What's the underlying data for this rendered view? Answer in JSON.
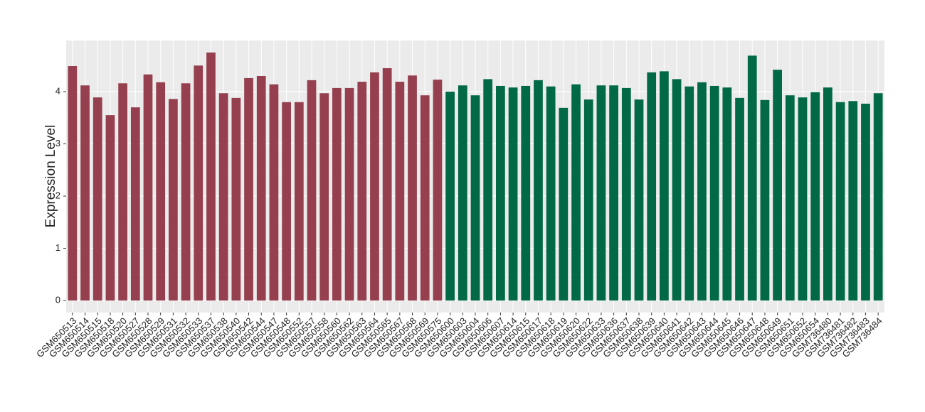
{
  "chart_data": {
    "type": "bar",
    "y_label": "Expression Level",
    "categories": [
      "GSM650513",
      "GSM650514",
      "GSM650515",
      "GSM650518",
      "GSM650520",
      "GSM650527",
      "GSM650528",
      "GSM650529",
      "GSM650531",
      "GSM650532",
      "GSM650533",
      "GSM650537",
      "GSM650538",
      "GSM650540",
      "GSM650542",
      "GSM650544",
      "GSM650547",
      "GSM650548",
      "GSM650552",
      "GSM650557",
      "GSM650558",
      "GSM650560",
      "GSM650562",
      "GSM650563",
      "GSM650564",
      "GSM650565",
      "GSM650567",
      "GSM650568",
      "GSM650569",
      "GSM650575",
      "GSM650600",
      "GSM650603",
      "GSM650604",
      "GSM650606",
      "GSM650607",
      "GSM650614",
      "GSM650615",
      "GSM650617",
      "GSM650618",
      "GSM650619",
      "GSM650620",
      "GSM650622",
      "GSM650633",
      "GSM650636",
      "GSM650637",
      "GSM650638",
      "GSM650639",
      "GSM650640",
      "GSM650641",
      "GSM650642",
      "GSM650643",
      "GSM650644",
      "GSM650645",
      "GSM650646",
      "GSM650647",
      "GSM650648",
      "GSM650649",
      "GSM650651",
      "GSM650652",
      "GSM650654",
      "GSM736480",
      "GSM736481",
      "GSM736482",
      "GSM736483",
      "GSM736484"
    ],
    "values": [
      4.49,
      4.12,
      3.89,
      3.55,
      4.16,
      3.7,
      4.33,
      4.18,
      3.86,
      4.16,
      4.5,
      4.75,
      3.97,
      3.88,
      4.26,
      4.3,
      4.14,
      3.8,
      3.8,
      4.22,
      3.97,
      4.07,
      4.07,
      4.19,
      4.37,
      4.45,
      4.19,
      4.31,
      3.93,
      4.23,
      4.0,
      4.12,
      3.93,
      4.24,
      4.11,
      4.08,
      4.11,
      4.22,
      4.1,
      3.69,
      4.14,
      3.85,
      4.12,
      4.12,
      4.07,
      3.85,
      4.37,
      4.39,
      4.24,
      4.1,
      4.18,
      4.11,
      4.08,
      3.88,
      4.69,
      3.84,
      4.42,
      3.93,
      3.89,
      3.99,
      4.08,
      3.8,
      3.82,
      3.77,
      3.97
    ],
    "colors": [
      "#96404f",
      "#96404f",
      "#96404f",
      "#96404f",
      "#96404f",
      "#96404f",
      "#96404f",
      "#96404f",
      "#96404f",
      "#96404f",
      "#96404f",
      "#96404f",
      "#96404f",
      "#96404f",
      "#96404f",
      "#96404f",
      "#96404f",
      "#96404f",
      "#96404f",
      "#96404f",
      "#96404f",
      "#96404f",
      "#96404f",
      "#96404f",
      "#96404f",
      "#96404f",
      "#96404f",
      "#96404f",
      "#96404f",
      "#96404f",
      "#016946",
      "#016946",
      "#016946",
      "#016946",
      "#016946",
      "#016946",
      "#016946",
      "#016946",
      "#016946",
      "#016946",
      "#016946",
      "#016946",
      "#016946",
      "#016946",
      "#016946",
      "#016946",
      "#016946",
      "#016946",
      "#016946",
      "#016946",
      "#016946",
      "#016946",
      "#016946",
      "#016946",
      "#016946",
      "#016946",
      "#016946",
      "#016946",
      "#016946",
      "#016946",
      "#016946",
      "#016946",
      "#016946",
      "#016946",
      "#016946"
    ],
    "ylim": [
      -0.23,
      4.98
    ],
    "yticks": [
      0,
      1,
      2,
      3,
      4
    ],
    "grid": true
  }
}
